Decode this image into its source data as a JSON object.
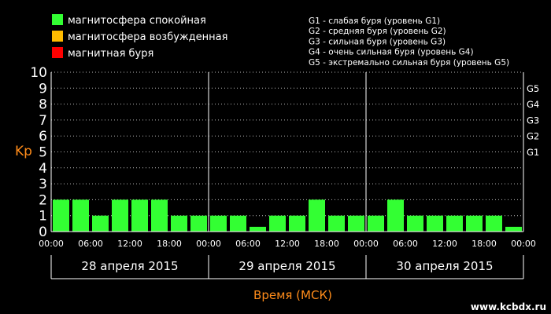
{
  "legend_left": [
    {
      "label": "магнитосфера спокойная",
      "color": "#33ff33"
    },
    {
      "label": "магнитосфера возбужденная",
      "color": "#ffbb00"
    },
    {
      "label": "магнитная буря",
      "color": "#ff0000"
    }
  ],
  "legend_right": [
    "G1 - слабая буря (уровень G1)",
    "G2 - средняя буря (уровень G2)",
    "G3 - сильная буря (уровень G3)",
    "G4 - очень сильная буря (уровень G4)",
    "G5 - экстремально сильная буря (уровень G5)"
  ],
  "watermark": "www.kcbdx.ru",
  "chart_data": {
    "type": "bar",
    "title": "",
    "ylabel": "Kp",
    "xlabel": "Время (МСК)",
    "ylim": [
      0,
      10
    ],
    "yticks": [
      "0",
      "1",
      "2",
      "3",
      "4",
      "5",
      "6",
      "7",
      "8",
      "9",
      "10"
    ],
    "g_levels": [
      {
        "label": "G1",
        "kp": 5
      },
      {
        "label": "G2",
        "kp": 6
      },
      {
        "label": "G3",
        "kp": 7
      },
      {
        "label": "G4",
        "kp": 8
      },
      {
        "label": "G5",
        "kp": 9
      }
    ],
    "time_ticks": [
      "00:00",
      "06:00",
      "12:00",
      "18:00",
      "00:00",
      "06:00",
      "12:00",
      "18:00",
      "00:00",
      "06:00",
      "12:00",
      "18:00",
      "00:00"
    ],
    "days": [
      "28 апреля 2015",
      "29 апреля 2015",
      "30 апреля 2015"
    ],
    "bar_color": "#33ff33",
    "values": [
      2,
      2,
      1,
      2,
      2,
      2,
      1,
      1,
      1,
      1,
      0.3,
      1,
      1,
      2,
      1,
      1,
      1,
      2,
      1,
      1,
      1,
      1,
      1,
      0.3
    ]
  }
}
